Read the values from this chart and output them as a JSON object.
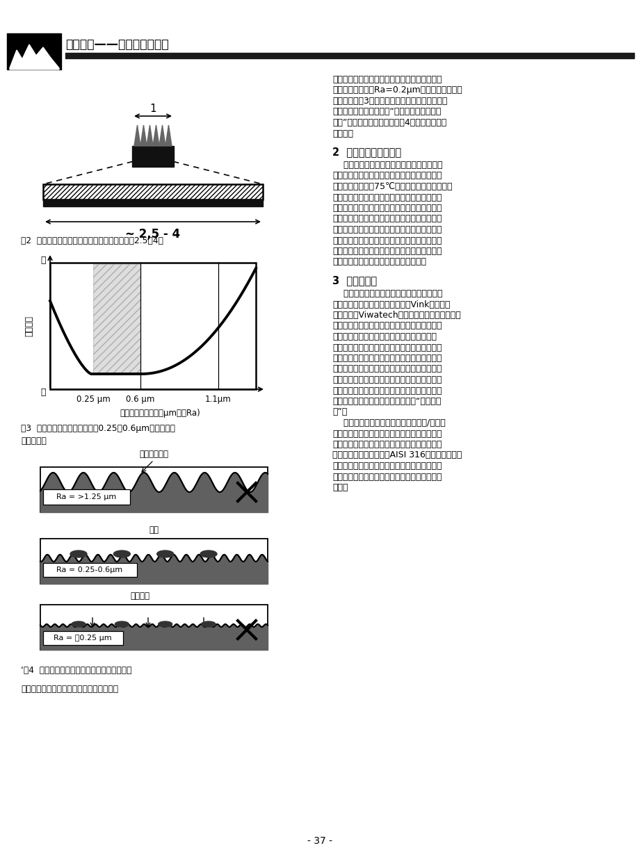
{
  "page_title": "不锈应用——生活中的不锈锡",
  "bg_color": "#ffffff",
  "fig2_caption": "图2  有时，研磨表面的粗糙度比抛光表面的要大2.5～4倍",
  "fig2_scale_label": "~ 2,5 - 4",
  "fig2_dim_label": "1",
  "fig3_caption": "图3  如果不锈锡的表面粗糙度在0.25～0.6μm之间，清洁\n起来最容易",
  "fig3_xlabel": "增大表面粗糙度（按μm计，Ra)",
  "fig3_ylabel": "可清洁性",
  "fig3_bad": "差",
  "fig3_good": "好",
  "fig3_x1": "0.25 μm",
  "fig3_x2": "0.6 μm",
  "fig3_x3": "1.1μm",
  "fig4_caption": "‘图4  如果表面太光滑，就很难从表面去除细菌",
  "fig4_label1": "各种类型细菌",
  "fig4_label2": "细菌",
  "fig4_label3": "粘结太紧",
  "fig4_ra1": "Ra = >1.25 μm",
  "fig4_ra2": "Ra = 0.25-0.6μm",
  "fig4_ra3": "Ra = 兰0.25 μm",
  "bottom_text": "因此，重要的是表面要平滑，但是，也不能",
  "right_intro_lines": [
    "太光滑，太光滑则使表面和微生物之间的粘合力",
    "变大，当粗糙度在Ra=0.2μm以下时会生成危险",
    "的生物膜。图3所示为可清洁性与粗糙度的关系。",
    "换句话说，在实际当中，“表面越光滑，越易于",
    "清洗”这条规则并不总适用。图4所示为发生的真",
    "实情况。"
  ],
  "section2_title": "2  噴射带有磨料的干冰",
  "section2_lines": [
    "    去除不想要的或烧损的不锈锡表面退火色还",
    "有一种鲜为人知的方法，就是通过噴射干冰加磨",
    "料的方法。把在－75℃凝固的碘晶粒与少量的磨",
    "料一起噴到不锈锡表面，其结果是在非常短的时",
    "间内，二氧化碗从固态转化为蒸气。这在不锈锡",
    "表面产生升华及热震，磨料可彻底消除退火色。",
    "这种工艺的效果不错，但缺点是生产期间的噪音",
    "太大，而且，生产需要干冰，价格较贵。优点是",
    "生产后除了粉尘外，不会有水分。还有一个缺点",
    "是不锈锡表面为乳白色，外观不太漂亮。"
  ],
  "section3_title": "3  水噴射处理",
  "section3_lines": [
    "    近年来，荷兰开发了一种独特的崭新技术，",
    "就是水噴射处理技术。该技术是由Vink公司开发",
    "的，称之为Viwatech。该技术采用的是几乎不含",
    "氧化物的专用富氧水。这种水在去除旧的氧化膜",
    "后可迅速使氧化铬钗化膜形成。水中加入研磨",
    "料，用来取代酸洗的作用。所有的溶液是在高压",
    "下按照特定的平衡比噴到整个工件上的，能彻底",
    "地去除退火色和有害的污染。而且，处理后表面",
    "得到了修复，优化了耐腐蚀性能。形成相对较低",
    "的粗糙度又有降低污垃沉积倾向，进一步提高了",
    "耐腐蚀性能。因此可防止产生有害的“污垃下侵",
    "蚀”。",
    "    由于海水或微咏水的悬浮微粒的表面/体积比",
    "不理想，当在空气中时蒸发相对较快，使盐和氧",
    "化物的浓度增加。换句话说，它们对不锈锡有非",
    "常强的腐蚀作用，即使是AISI 316不锈锡也不耐这",
    "种腐蚀。海水或微咏水的悬浮微粒对不锈锡家具",
    "外表面的影响尤为突出。特别是研磨表面受影响",
    "更大。"
  ],
  "page_number": "- 37 -"
}
